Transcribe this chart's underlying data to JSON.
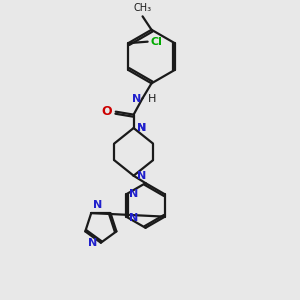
{
  "background_color": "#e8e8e8",
  "bond_color": "#1a1a1a",
  "nitrogen_color": "#2020cc",
  "oxygen_color": "#cc0000",
  "chlorine_color": "#00aa00",
  "line_width": 1.6,
  "dbo": 0.06,
  "figsize": [
    3.0,
    3.0
  ],
  "dpi": 100,
  "xlim": [
    0,
    10
  ],
  "ylim": [
    0,
    10
  ]
}
